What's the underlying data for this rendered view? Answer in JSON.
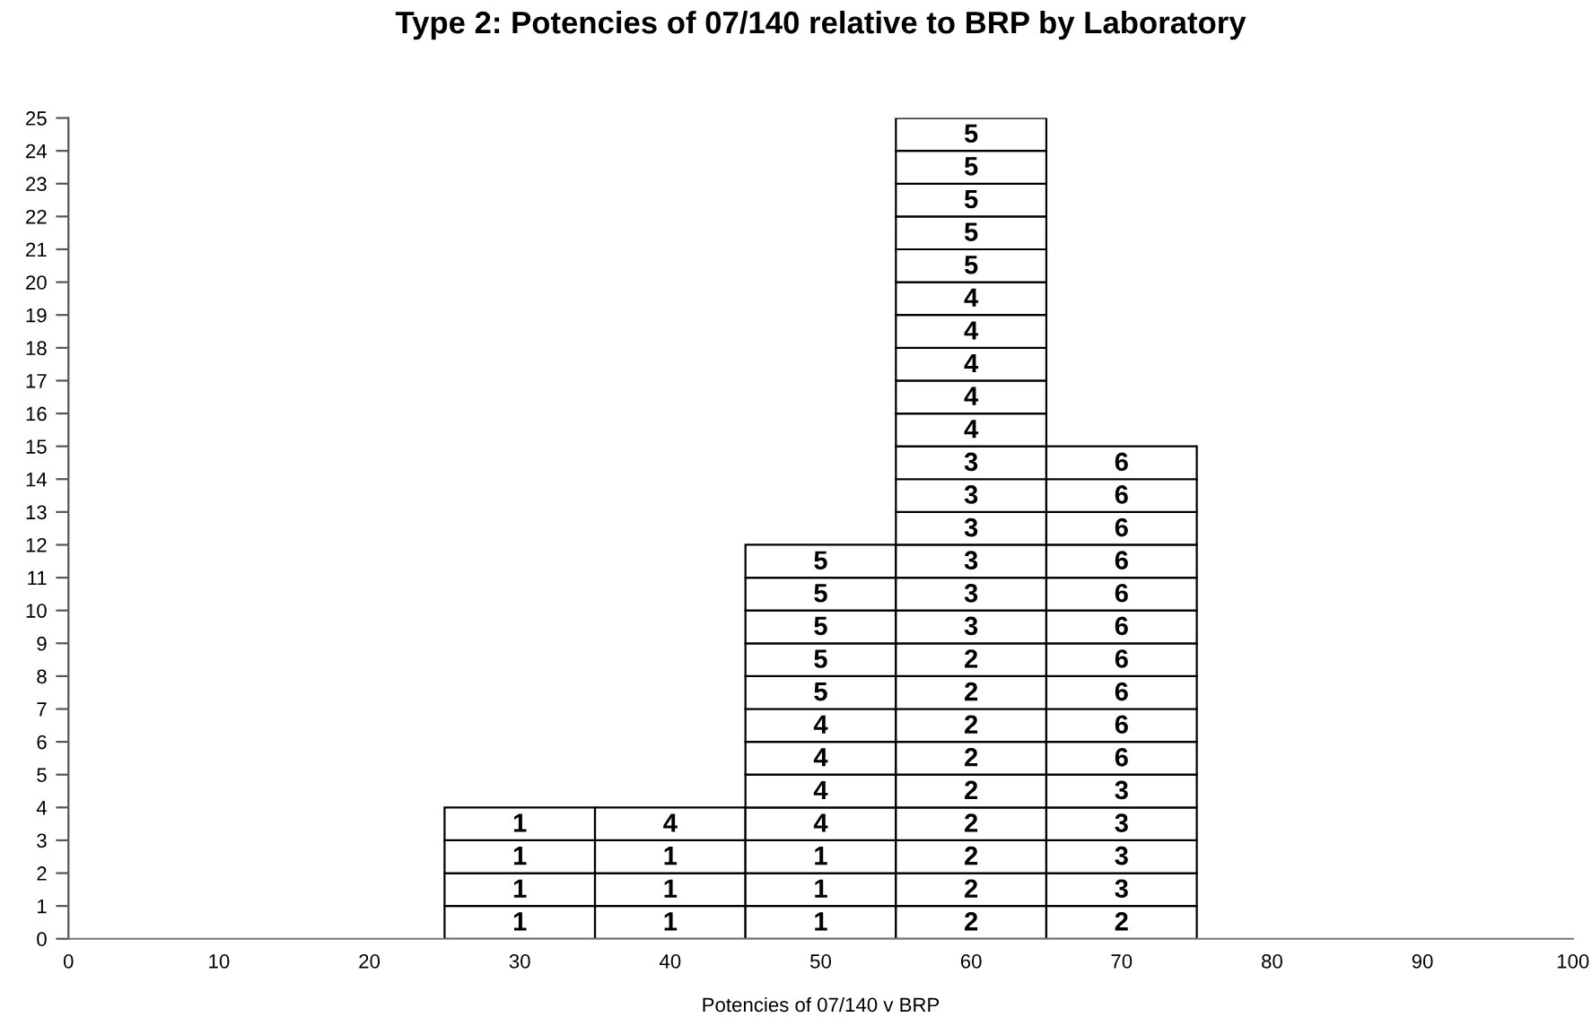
{
  "chart_data": {
    "type": "bar",
    "stacked": true,
    "title": "Type 2: Potencies of 07/140 relative to BRP by Laboratory",
    "xlabel": "Potencies of 07/140 v BRP",
    "x": [
      30,
      40,
      50,
      60,
      70
    ],
    "xlim": [
      0,
      100
    ],
    "xticks": [
      0,
      10,
      20,
      30,
      40,
      50,
      60,
      70,
      80,
      90,
      100
    ],
    "ylim": [
      0,
      25
    ],
    "yticks": [
      0,
      1,
      2,
      3,
      4,
      5,
      6,
      7,
      8,
      9,
      10,
      11,
      12,
      13,
      14,
      15,
      16,
      17,
      18,
      19,
      20,
      21,
      22,
      23,
      24,
      25
    ],
    "grid": false,
    "legend": false,
    "series": [
      {
        "color": "#ffffff",
        "values": [
          1,
          1,
          1,
          1,
          1
        ]
      },
      {
        "color": "#ffffff",
        "values": [
          1,
          1,
          1,
          1,
          1
        ]
      },
      {
        "color": "#ffffff",
        "values": [
          1,
          1,
          1,
          1,
          1
        ]
      },
      {
        "color": "#ffffff",
        "values": [
          1,
          1,
          1,
          1,
          1
        ]
      },
      {
        "color": "#ffffff",
        "values": [
          null,
          null,
          1,
          1,
          1
        ]
      },
      {
        "color": "#ffffff",
        "values": [
          null,
          null,
          1,
          1,
          1
        ]
      },
      {
        "color": "#ffffff",
        "values": [
          null,
          null,
          1,
          1,
          1
        ]
      },
      {
        "color": "#ffffff",
        "values": [
          null,
          null,
          1,
          1,
          1
        ]
      },
      {
        "color": "#ffffff",
        "values": [
          null,
          null,
          1,
          1,
          1
        ]
      },
      {
        "color": "#ffffff",
        "values": [
          null,
          null,
          1,
          1,
          1
        ]
      },
      {
        "color": "#ffffff",
        "values": [
          null,
          null,
          1,
          1,
          1
        ]
      },
      {
        "color": "#ffffff",
        "values": [
          null,
          null,
          1,
          1,
          1
        ]
      },
      {
        "color": "#ffffff",
        "values": [
          null,
          null,
          null,
          1,
          1
        ]
      },
      {
        "color": "#ffffff",
        "values": [
          null,
          null,
          null,
          1,
          1
        ]
      },
      {
        "color": "#ffffff",
        "values": [
          null,
          null,
          null,
          1,
          1
        ]
      },
      {
        "color": "#ffffff",
        "values": [
          null,
          null,
          null,
          1,
          null
        ]
      },
      {
        "color": "#ffffff",
        "values": [
          null,
          null,
          null,
          1,
          null
        ]
      },
      {
        "color": "#ffffff",
        "values": [
          null,
          null,
          null,
          1,
          null
        ]
      },
      {
        "color": "#ffffff",
        "values": [
          null,
          null,
          null,
          1,
          null
        ]
      },
      {
        "color": "#ffffff",
        "values": [
          null,
          null,
          null,
          1,
          null
        ]
      },
      {
        "color": "#ffffff",
        "values": [
          null,
          null,
          null,
          1,
          null
        ]
      },
      {
        "color": "#ffffff",
        "values": [
          null,
          null,
          null,
          1,
          null
        ]
      },
      {
        "color": "#ffffff",
        "values": [
          null,
          null,
          null,
          1,
          null
        ]
      },
      {
        "color": "#ffffff",
        "values": [
          null,
          null,
          null,
          1,
          null
        ]
      },
      {
        "color": "#ffffff",
        "values": [
          null,
          null,
          null,
          1,
          null
        ]
      }
    ],
    "annotations": [
      {
        "text": "1",
        "x": 30,
        "y": 1
      },
      {
        "text": "1",
        "x": 30,
        "y": 2
      },
      {
        "text": "1",
        "x": 30,
        "y": 3
      },
      {
        "text": "1",
        "x": 30,
        "y": 4
      },
      {
        "text": "1",
        "x": 40,
        "y": 1
      },
      {
        "text": "1",
        "x": 40,
        "y": 2
      },
      {
        "text": "1",
        "x": 40,
        "y": 3
      },
      {
        "text": "4",
        "x": 40,
        "y": 4
      },
      {
        "text": "1",
        "x": 50,
        "y": 1
      },
      {
        "text": "1",
        "x": 50,
        "y": 2
      },
      {
        "text": "1",
        "x": 50,
        "y": 3
      },
      {
        "text": "4",
        "x": 50,
        "y": 4
      },
      {
        "text": "4",
        "x": 50,
        "y": 5
      },
      {
        "text": "4",
        "x": 50,
        "y": 6
      },
      {
        "text": "4",
        "x": 50,
        "y": 7
      },
      {
        "text": "5",
        "x": 50,
        "y": 8
      },
      {
        "text": "5",
        "x": 50,
        "y": 9
      },
      {
        "text": "5",
        "x": 50,
        "y": 10
      },
      {
        "text": "5",
        "x": 50,
        "y": 11
      },
      {
        "text": "5",
        "x": 50,
        "y": 12
      },
      {
        "text": "2",
        "x": 60,
        "y": 1
      },
      {
        "text": "2",
        "x": 60,
        "y": 2
      },
      {
        "text": "2",
        "x": 60,
        "y": 3
      },
      {
        "text": "2",
        "x": 60,
        "y": 4
      },
      {
        "text": "2",
        "x": 60,
        "y": 5
      },
      {
        "text": "2",
        "x": 60,
        "y": 6
      },
      {
        "text": "2",
        "x": 60,
        "y": 7
      },
      {
        "text": "2",
        "x": 60,
        "y": 8
      },
      {
        "text": "2",
        "x": 60,
        "y": 9
      },
      {
        "text": "3",
        "x": 60,
        "y": 10
      },
      {
        "text": "3",
        "x": 60,
        "y": 11
      },
      {
        "text": "3",
        "x": 60,
        "y": 12
      },
      {
        "text": "3",
        "x": 60,
        "y": 13
      },
      {
        "text": "3",
        "x": 60,
        "y": 14
      },
      {
        "text": "3",
        "x": 60,
        "y": 15
      },
      {
        "text": "4",
        "x": 60,
        "y": 16
      },
      {
        "text": "4",
        "x": 60,
        "y": 17
      },
      {
        "text": "4",
        "x": 60,
        "y": 18
      },
      {
        "text": "4",
        "x": 60,
        "y": 19
      },
      {
        "text": "4",
        "x": 60,
        "y": 20
      },
      {
        "text": "5",
        "x": 60,
        "y": 21
      },
      {
        "text": "5",
        "x": 60,
        "y": 22
      },
      {
        "text": "5",
        "x": 60,
        "y": 23
      },
      {
        "text": "5",
        "x": 60,
        "y": 24
      },
      {
        "text": "5",
        "x": 60,
        "y": 25
      },
      {
        "text": "2",
        "x": 70,
        "y": 1
      },
      {
        "text": "3",
        "x": 70,
        "y": 2
      },
      {
        "text": "3",
        "x": 70,
        "y": 3
      },
      {
        "text": "3",
        "x": 70,
        "y": 4
      },
      {
        "text": "3",
        "x": 70,
        "y": 5
      },
      {
        "text": "6",
        "x": 70,
        "y": 6
      },
      {
        "text": "6",
        "x": 70,
        "y": 7
      },
      {
        "text": "6",
        "x": 70,
        "y": 8
      },
      {
        "text": "6",
        "x": 70,
        "y": 9
      },
      {
        "text": "6",
        "x": 70,
        "y": 10
      },
      {
        "text": "6",
        "x": 70,
        "y": 11
      },
      {
        "text": "6",
        "x": 70,
        "y": 12
      },
      {
        "text": "6",
        "x": 70,
        "y": 13
      },
      {
        "text": "6",
        "x": 70,
        "y": 14
      },
      {
        "text": "6",
        "x": 70,
        "y": 15
      }
    ]
  }
}
